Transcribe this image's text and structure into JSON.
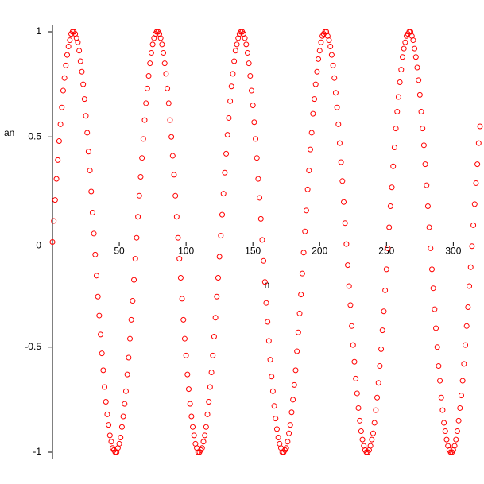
{
  "chart_data": {
    "type": "scatter",
    "xlabel": "n",
    "ylabel": "an",
    "color": "#ff0000",
    "xlim": [
      0,
      320
    ],
    "ylim": [
      -1,
      1
    ],
    "xticks": [
      50,
      100,
      150,
      200,
      250,
      300
    ],
    "yticks": [
      -1,
      -0.5,
      0,
      0.5,
      1
    ],
    "x": [
      0,
      1,
      2,
      3,
      4,
      5,
      6,
      7,
      8,
      9,
      10,
      11,
      12,
      13,
      14,
      15,
      16,
      17,
      18,
      19,
      20,
      21,
      22,
      23,
      24,
      25,
      26,
      27,
      28,
      29,
      30,
      31,
      32,
      33,
      34,
      35,
      36,
      37,
      38,
      39,
      40,
      41,
      42,
      43,
      44,
      45,
      46,
      47,
      48,
      49,
      50,
      51,
      52,
      53,
      54,
      55,
      56,
      57,
      58,
      59,
      60,
      61,
      62,
      63,
      64,
      65,
      66,
      67,
      68,
      69,
      70,
      71,
      72,
      73,
      74,
      75,
      76,
      77,
      78,
      79,
      80,
      81,
      82,
      83,
      84,
      85,
      86,
      87,
      88,
      89,
      90,
      91,
      92,
      93,
      94,
      95,
      96,
      97,
      98,
      99,
      100,
      101,
      102,
      103,
      104,
      105,
      106,
      107,
      108,
      109,
      110,
      111,
      112,
      113,
      114,
      115,
      116,
      117,
      118,
      119,
      120,
      121,
      122,
      123,
      124,
      125,
      126,
      127,
      128,
      129,
      130,
      131,
      132,
      133,
      134,
      135,
      136,
      137,
      138,
      139,
      140,
      141,
      142,
      143,
      144,
      145,
      146,
      147,
      148,
      149,
      150,
      151,
      152,
      153,
      154,
      155,
      156,
      157,
      158,
      159,
      160,
      161,
      162,
      163,
      164,
      165,
      166,
      167,
      168,
      169,
      170,
      171,
      172,
      173,
      174,
      175,
      176,
      177,
      178,
      179,
      180,
      181,
      182,
      183,
      184,
      185,
      186,
      187,
      188,
      189,
      190,
      191,
      192,
      193,
      194,
      195,
      196,
      197,
      198,
      199,
      200,
      201,
      202,
      203,
      204,
      205,
      206,
      207,
      208,
      209,
      210,
      211,
      212,
      213,
      214,
      215,
      216,
      217,
      218,
      219,
      220,
      221,
      222,
      223,
      224,
      225,
      226,
      227,
      228,
      229,
      230,
      231,
      232,
      233,
      234,
      235,
      236,
      237,
      238,
      239,
      240,
      241,
      242,
      243,
      244,
      245,
      246,
      247,
      248,
      249,
      250,
      251,
      252,
      253,
      254,
      255,
      256,
      257,
      258,
      259,
      260,
      261,
      262,
      263,
      264,
      265,
      266,
      267,
      268,
      269,
      270,
      271,
      272,
      273,
      274,
      275,
      276,
      277,
      278,
      279,
      280,
      281,
      282,
      283,
      284,
      285,
      286,
      287,
      288,
      289,
      290,
      291,
      292,
      293,
      294,
      295,
      296,
      297,
      298,
      299,
      300,
      301,
      302,
      303,
      304,
      305,
      306,
      307,
      308,
      309,
      310,
      311,
      312,
      313,
      314,
      315,
      316,
      317,
      318,
      319,
      320
    ],
    "values": [
      0,
      0.1,
      0.2,
      0.3,
      0.39,
      0.48,
      0.56,
      0.64,
      0.72,
      0.78,
      0.84,
      0.89,
      0.93,
      0.96,
      0.99,
      1,
      1,
      0.99,
      0.97,
      0.95,
      0.91,
      0.86,
      0.81,
      0.75,
      0.68,
      0.6,
      0.52,
      0.43,
      0.34,
      0.24,
      0.14,
      0.04,
      -0.06,
      -0.16,
      -0.26,
      -0.35,
      -0.44,
      -0.53,
      -0.61,
      -0.69,
      -0.76,
      -0.82,
      -0.87,
      -0.92,
      -0.95,
      -0.98,
      -0.99,
      -1,
      -1,
      -0.98,
      -0.96,
      -0.93,
      -0.88,
      -0.83,
      -0.77,
      -0.71,
      -0.63,
      -0.55,
      -0.46,
      -0.37,
      -0.28,
      -0.18,
      -0.08,
      0.02,
      0.12,
      0.22,
      0.31,
      0.4,
      0.49,
      0.58,
      0.66,
      0.73,
      0.79,
      0.85,
      0.9,
      0.94,
      0.97,
      0.99,
      1,
      1,
      0.99,
      0.97,
      0.94,
      0.9,
      0.85,
      0.8,
      0.73,
      0.66,
      0.58,
      0.5,
      0.41,
      0.32,
      0.22,
      0.12,
      0.02,
      -0.08,
      -0.17,
      -0.27,
      -0.37,
      -0.46,
      -0.54,
      -0.63,
      -0.7,
      -0.77,
      -0.83,
      -0.88,
      -0.92,
      -0.96,
      -0.98,
      -1,
      -1,
      -0.99,
      -0.98,
      -0.95,
      -0.92,
      -0.88,
      -0.82,
      -0.76,
      -0.69,
      -0.62,
      -0.54,
      -0.45,
      -0.36,
      -0.26,
      -0.17,
      -0.07,
      0.03,
      0.13,
      0.23,
      0.33,
      0.42,
      0.51,
      0.59,
      0.67,
      0.74,
      0.8,
      0.86,
      0.91,
      0.94,
      0.97,
      0.99,
      1,
      1,
      0.99,
      0.97,
      0.94,
      0.9,
      0.85,
      0.79,
      0.72,
      0.65,
      0.57,
      0.49,
      0.4,
      0.3,
      0.21,
      0.11,
      0.01,
      -0.09,
      -0.19,
      -0.29,
      -0.38,
      -0.47,
      -0.56,
      -0.64,
      -0.71,
      -0.78,
      -0.84,
      -0.89,
      -0.93,
      -0.96,
      -0.98,
      -1,
      -1,
      -0.99,
      -0.98,
      -0.95,
      -0.91,
      -0.87,
      -0.81,
      -0.75,
      -0.68,
      -0.61,
      -0.52,
      -0.43,
      -0.34,
      -0.25,
      -0.15,
      -0.05,
      0.05,
      0.15,
      0.25,
      0.34,
      0.44,
      0.52,
      0.61,
      0.68,
      0.75,
      0.81,
      0.87,
      0.91,
      0.95,
      0.98,
      0.99,
      1,
      1,
      0.98,
      0.96,
      0.93,
      0.89,
      0.84,
      0.78,
      0.71,
      0.64,
      0.56,
      0.47,
      0.38,
      0.29,
      0.19,
      0.09,
      -0.01,
      -0.11,
      -0.21,
      -0.3,
      -0.4,
      -0.49,
      -0.57,
      -0.65,
      -0.72,
      -0.79,
      -0.85,
      -0.9,
      -0.94,
      -0.97,
      -0.99,
      -1,
      -1,
      -0.99,
      -0.97,
      -0.94,
      -0.91,
      -0.86,
      -0.8,
      -0.74,
      -0.67,
      -0.59,
      -0.51,
      -0.42,
      -0.33,
      -0.23,
      -0.13,
      -0.03,
      0.07,
      0.17,
      0.26,
      0.36,
      0.45,
      0.54,
      0.62,
      0.69,
      0.76,
      0.82,
      0.88,
      0.92,
      0.95,
      0.98,
      0.99,
      1,
      1,
      0.98,
      0.96,
      0.92,
      0.88,
      0.83,
      0.77,
      0.7,
      0.62,
      0.54,
      0.46,
      0.37,
      0.27,
      0.17,
      0.07,
      -0.03,
      -0.13,
      -0.22,
      -0.32,
      -0.41,
      -0.5,
      -0.59,
      -0.66,
      -0.74,
      -0.8,
      -0.86,
      -0.9,
      -0.94,
      -0.97,
      -0.99,
      -1,
      -1,
      -0.99,
      -0.97,
      -0.94,
      -0.9,
      -0.85,
      -0.79,
      -0.73,
      -0.66,
      -0.58,
      -0.49,
      -0.4,
      -0.31,
      -0.21,
      -0.12,
      -0.02,
      0.08,
      0.18,
      0.28,
      0.37,
      0.47,
      0.55
    ]
  }
}
